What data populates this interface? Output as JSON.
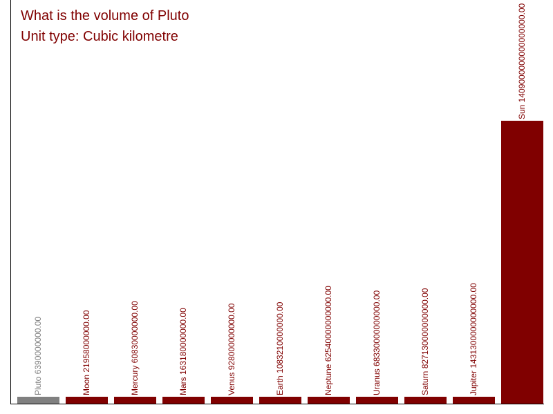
{
  "question": "What is the volume of Pluto",
  "unit_line": "Unit type: Cubic kilometre",
  "colors": {
    "highlight": "#808080",
    "normal": "#800000",
    "axis": "#000000"
  },
  "chart_data": {
    "type": "bar",
    "title": "What is the volume of Pluto",
    "subtitle": "Unit type: Cubic kilometre",
    "xlabel": "",
    "ylabel": "",
    "ylim": [
      0,
      1409000000000000000
    ],
    "grid": false,
    "highlighted_category": "Pluto",
    "categories": [
      "Pluto",
      "Moon",
      "Mercury",
      "Mars",
      "Venus",
      "Earth",
      "Neptune",
      "Uranus",
      "Saturn",
      "Jupiter",
      "Sun"
    ],
    "values": [
      6390000000,
      21958000000,
      60830000000,
      163180000000,
      928000000000,
      1083210000000,
      62540000000000,
      68330000000000,
      827130000000000,
      1431300000000000,
      1409000000000000000
    ],
    "labels": [
      "Pluto 6390000000.00",
      "Moon 21958000000.00",
      "Mercury 60830000000.00",
      "Mars 163180000000.00",
      "Venus 928000000000.00",
      "Earth 1083210000000.00",
      "Neptune 62540000000000.00",
      "Uranus 68330000000000.00",
      "Saturn 827130000000000.00",
      "Jupiter 1431300000000000.00",
      "Sun 1409000000000000000.00"
    ]
  }
}
